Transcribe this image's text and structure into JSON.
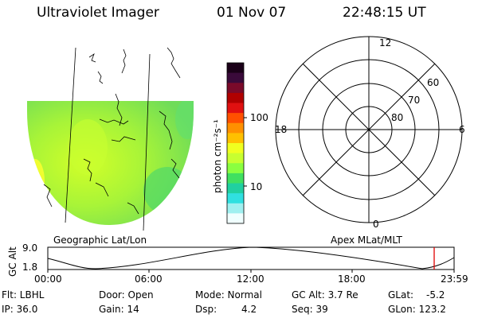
{
  "header": {
    "title": "Ultraviolet Imager",
    "date": "01 Nov 07",
    "time": "22:48:15 UT"
  },
  "colorbar": {
    "unit_label": "photon cm⁻²s⁻¹",
    "ticks": [
      "100",
      "10"
    ],
    "colors": [
      "#1a0018",
      "#3a0a3a",
      "#7a0a2a",
      "#b00000",
      "#e01010",
      "#ff5000",
      "#ff9000",
      "#ffc000",
      "#f0ff20",
      "#c8ff30",
      "#8aff40",
      "#40e060",
      "#20d0a0",
      "#30e0e0",
      "#a0f0f0",
      "#f0ffff"
    ]
  },
  "left_panel": {
    "caption": "Geographic Lat/Lon"
  },
  "polar_plot": {
    "caption": "Apex MLat/MLT",
    "mlt_labels": {
      "top": "12",
      "left": "18",
      "right": "6",
      "bottom": "0"
    },
    "mlat_labels": [
      "60",
      "70",
      "80"
    ]
  },
  "orbit_plot": {
    "ylabel": "GC Alt",
    "ytick_top": "9.0",
    "ytick_bottom": "1.8",
    "xticks": [
      "00:00",
      "06:00",
      "12:00",
      "18:00",
      "23:59"
    ],
    "marker_color": "#e00000",
    "marker_time_fraction": 0.951
  },
  "status": {
    "filter": "Flt: LBHL",
    "ip": "IP: 36.0",
    "door": "Door: Open",
    "gain": "Gain: 14",
    "mode": "Mode: Normal",
    "dsp_label": "Dsp:",
    "dsp_value": "4.2",
    "gc_alt": "GC Alt: 3.7 Re",
    "seq": "Seq: 39",
    "glat_label": "GLat:",
    "glat_value": "-5.2",
    "glon": "GLon: 123.2"
  }
}
